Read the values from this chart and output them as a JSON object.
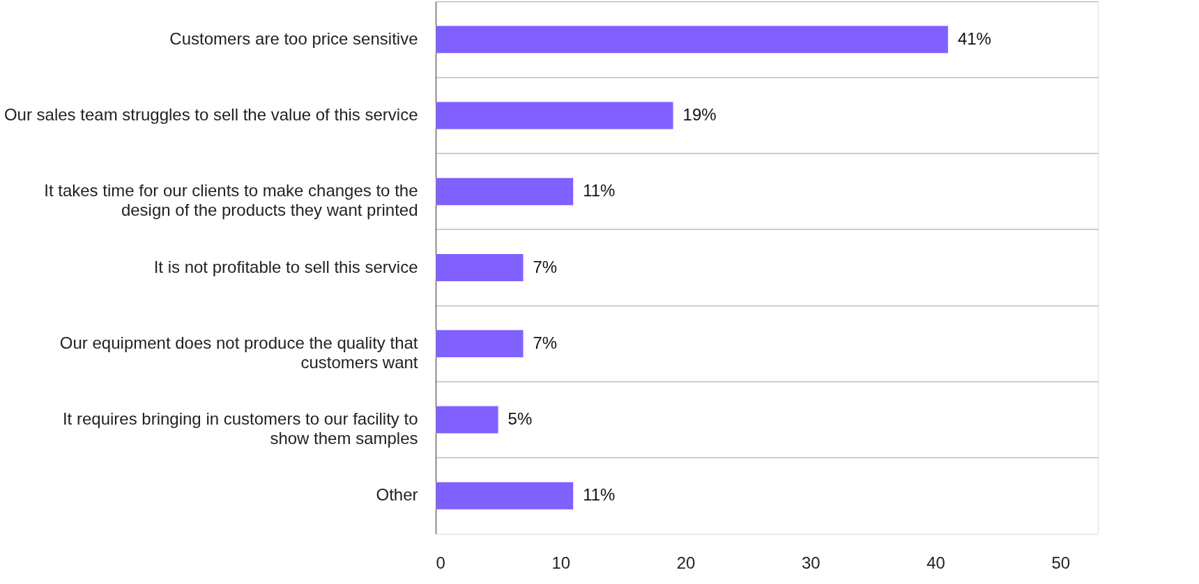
{
  "chart_data": {
    "type": "bar",
    "orientation": "horizontal",
    "categories": [
      "Customers are too price sensitive",
      "Our sales team struggles to sell the value of this service",
      "It takes time for our clients to make changes to the design of the products they want printed",
      "It is not profitable to sell this service",
      "Our  equipment does not produce the quality that customers want",
      "It requires bringing in customers to our facility to show them samples",
      "Other"
    ],
    "values": [
      41,
      19,
      11,
      7,
      7,
      5,
      11
    ],
    "value_labels": [
      "41%",
      "19%",
      "11%",
      "7%",
      "7%",
      "5%",
      "11%"
    ],
    "color": "#8060ff",
    "xlim": [
      0,
      53
    ],
    "xticks": [
      0,
      10,
      20,
      30,
      40,
      50
    ],
    "grid": "y"
  }
}
